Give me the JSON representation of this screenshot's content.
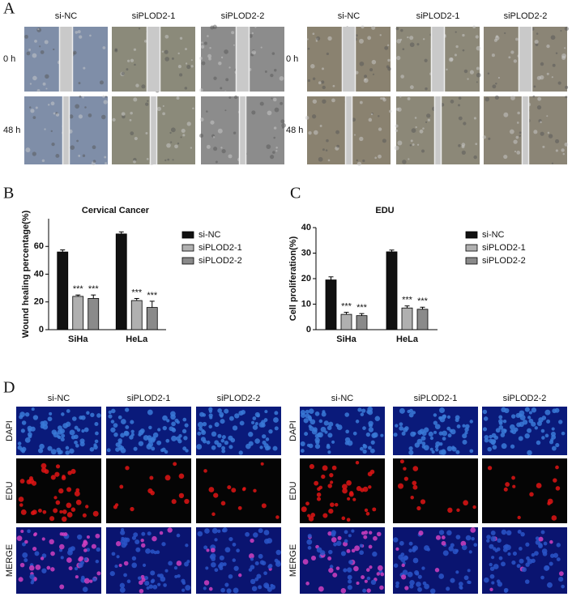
{
  "panel_labels": [
    "A",
    "B",
    "C",
    "D"
  ],
  "panel_a": {
    "left": {
      "columns": [
        "si-NC",
        "siPLOD2-1",
        "siPLOD2-2"
      ],
      "rows": [
        "0 h",
        "48 h"
      ]
    },
    "right": {
      "columns": [
        "si-NC",
        "siPLOD2-1",
        "siPLOD2-2"
      ],
      "rows": [
        "0 h",
        "48 h"
      ]
    }
  },
  "chart_data": [
    {
      "type": "bar",
      "title": "Cervical Cancer",
      "y_label": "Wound healing percentage(%)",
      "categories": [
        "SiHa",
        "HeLa"
      ],
      "ylim": [
        0,
        80
      ],
      "yticks": [
        0,
        20,
        40,
        60
      ],
      "series": [
        {
          "name": "si-NC",
          "color": "#111111",
          "values": [
            56,
            69
          ],
          "errors": [
            1.5,
            1.5
          ]
        },
        {
          "name": "siPLOD2-1",
          "color": "#b0b0b0",
          "values": [
            24,
            21
          ],
          "errors": [
            1,
            1.5
          ],
          "annotations": [
            "***",
            "***"
          ]
        },
        {
          "name": "siPLOD2-2",
          "color": "#8a8a8a",
          "values": [
            22.5,
            16
          ],
          "errors": [
            2.5,
            4.5
          ],
          "annotations": [
            "***",
            "***"
          ]
        }
      ]
    },
    {
      "type": "bar",
      "title": "EDU",
      "y_label": "Cell proliferation(%)",
      "categories": [
        "SiHa",
        "HeLa"
      ],
      "ylim": [
        0,
        40
      ],
      "yticks": [
        0,
        10,
        20,
        30,
        40
      ],
      "series": [
        {
          "name": "si-NC",
          "color": "#111111",
          "values": [
            19.5,
            30.5
          ],
          "errors": [
            1.2,
            0.7
          ]
        },
        {
          "name": "siPLOD2-1",
          "color": "#b0b0b0",
          "values": [
            6,
            8.5
          ],
          "errors": [
            0.8,
            0.8
          ],
          "annotations": [
            "***",
            "***"
          ]
        },
        {
          "name": "siPLOD2-2",
          "color": "#8a8a8a",
          "values": [
            5.5,
            8
          ],
          "errors": [
            0.8,
            0.8
          ],
          "annotations": [
            "***",
            "***"
          ]
        }
      ]
    }
  ],
  "panel_d": {
    "left": {
      "columns": [
        "si-NC",
        "siPLOD2-1",
        "siPLOD2-2"
      ],
      "rows": [
        "DAPI",
        "EDU",
        "MERGE"
      ]
    },
    "right": {
      "columns": [
        "si-NC",
        "siPLOD2-1",
        "siPLOD2-2"
      ],
      "rows": [
        "DAPI",
        "EDU",
        "MERGE"
      ]
    }
  }
}
